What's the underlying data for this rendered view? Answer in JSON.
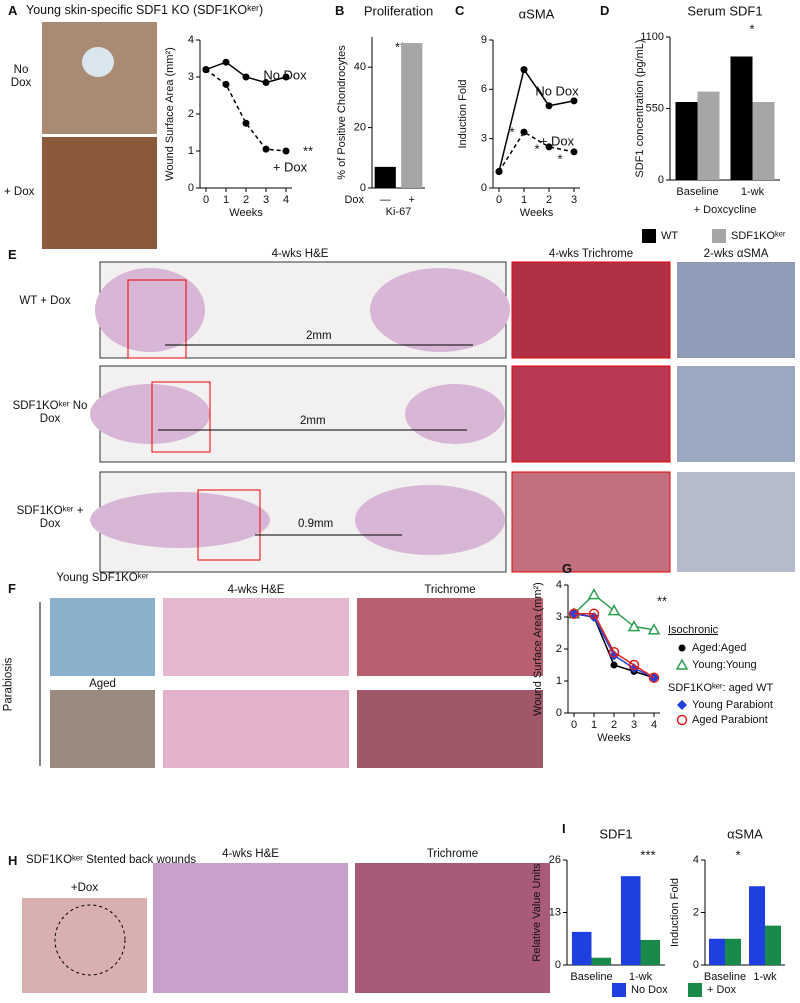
{
  "figure": {
    "panel_labels": [
      "A",
      "B",
      "C",
      "D",
      "E",
      "F",
      "G",
      "H",
      "I"
    ],
    "a_title": "Young skin-specific SDF1 KO (SDF1KOᵏᵉʳ)",
    "a_rows": [
      "No Dox",
      "+ Dox"
    ],
    "e_columns": [
      "4-wks H&E",
      "4-wks Trichrome",
      "2-wks αSMA"
    ],
    "e_rows": [
      "WT + Dox",
      "SDF1KOᵏᵉʳ No Dox",
      "SDF1KOᵏᵉʳ + Dox"
    ],
    "e_scales": [
      "2mm",
      "2mm",
      "0.9mm"
    ],
    "f_rows": [
      "Young SDF1KOᵏᵉʳ",
      "Aged"
    ],
    "f_side": "Parabiosis",
    "f_columns": [
      "4-wks H&E",
      "Trichrome"
    ],
    "h_title": "SDF1KOᵏᵉʳ  Stented back wounds",
    "h_image": "+Dox",
    "h_columns": [
      "4-wks H&E",
      "Trichrome"
    ]
  },
  "chart_data": [
    {
      "type": "line",
      "ylabel": "Wound Surface Area (mm²)",
      "xlabel": "Weeks",
      "x": [
        0,
        1,
        2,
        3,
        4
      ],
      "xlim": [
        0,
        4
      ],
      "xticks": [
        0,
        1,
        2,
        3,
        4
      ],
      "ylim": [
        0,
        4
      ],
      "yticks": [
        0,
        1,
        2,
        3,
        4
      ],
      "series": [
        {
          "name": "No Dox",
          "color": "#000000",
          "marker": "circle",
          "dash": false,
          "values": [
            3.2,
            3.4,
            3.0,
            2.85,
            3.0
          ]
        },
        {
          "name": "+ Dox",
          "color": "#000000",
          "marker": "circle",
          "dash": true,
          "values": [
            3.2,
            2.8,
            1.75,
            1.05,
            1.0
          ]
        }
      ],
      "annotations": [
        "No Dox",
        "+ Dox",
        "**"
      ]
    },
    {
      "type": "bar",
      "title": "Proliferation",
      "ylabel": "% of Positive Chondrocytes",
      "category_label": "Dox",
      "xlabel": "Ki-67",
      "categories": [
        "—",
        "+"
      ],
      "values": [
        7,
        48
      ],
      "colors": [
        "#000000",
        "#a6a6a6"
      ],
      "ylim": [
        0,
        50
      ],
      "yticks": [
        0,
        20,
        40
      ],
      "annotations": [
        "**"
      ]
    },
    {
      "type": "line",
      "title": "αSMA",
      "ylabel": "Induction Fold",
      "xlabel": "Weeks",
      "x": [
        0,
        1,
        2,
        3
      ],
      "xlim": [
        0,
        3
      ],
      "xticks": [
        0,
        1,
        2,
        3
      ],
      "ylim": [
        0,
        9
      ],
      "yticks": [
        0,
        3,
        6,
        9
      ],
      "series": [
        {
          "name": "No Dox",
          "color": "#000000",
          "marker": "circle",
          "dash": false,
          "values": [
            1,
            7.2,
            5.0,
            5.3
          ]
        },
        {
          "name": "+ Dox",
          "color": "#000000",
          "marker": "circle",
          "dash": true,
          "values": [
            1,
            3.4,
            2.5,
            2.2
          ]
        }
      ],
      "annotations": [
        "No Dox",
        "+ Dox",
        "*",
        "*",
        "*"
      ]
    },
    {
      "type": "bar",
      "title": "Serum  SDF1",
      "ylabel": "SDF1 concentration (pg/mL)",
      "xlabel": "+ Doxcycline",
      "categories": [
        "Baseline",
        "1-wk"
      ],
      "ylim": [
        0,
        1100
      ],
      "yticks": [
        0,
        550,
        1100
      ],
      "series": [
        {
          "name": "WT",
          "color": "#000000",
          "values": [
            600,
            950
          ]
        },
        {
          "name": "SDF1KOᵏᵉʳ",
          "color": "#a6a6a6",
          "values": [
            680,
            600
          ]
        }
      ],
      "annotations": [
        "*"
      ]
    },
    {
      "type": "line",
      "ylabel": "Wound Surface Area (mm²)",
      "xlabel": "Weeks",
      "x": [
        0,
        1,
        2,
        3,
        4
      ],
      "xlim": [
        0,
        4
      ],
      "xticks": [
        0,
        1,
        2,
        3,
        4
      ],
      "ylim": [
        0,
        4
      ],
      "yticks": [
        0,
        1,
        2,
        3,
        4
      ],
      "legend_headers": [
        "Isochronic",
        "SDF1KOᵏᵉʳ: aged WT"
      ],
      "series": [
        {
          "name": "Aged:Aged",
          "color": "#000000",
          "marker": "circle",
          "dash": false,
          "values": [
            3.1,
            3.0,
            1.5,
            1.3,
            1.1
          ]
        },
        {
          "name": "Young:Young",
          "color": "#2e9e4f",
          "marker": "triangle",
          "dash": false,
          "values": [
            3.1,
            3.7,
            3.2,
            2.7,
            2.6
          ]
        },
        {
          "name": "Young Parabiont",
          "color": "#1f3fe0",
          "marker": "diamond",
          "dash": false,
          "values": [
            3.1,
            3.0,
            1.8,
            1.4,
            1.1
          ]
        },
        {
          "name": "Aged Parabiont",
          "color": "#e0201b",
          "marker": "open-circle",
          "dash": false,
          "values": [
            3.1,
            3.1,
            1.9,
            1.5,
            1.1
          ]
        }
      ],
      "annotations": [
        "**"
      ]
    },
    {
      "type": "bar",
      "title": "SDF1",
      "ylabel": "Relative Value Units",
      "categories": [
        "Baseline",
        "1-wk"
      ],
      "ylim": [
        0,
        26
      ],
      "yticks": [
        0,
        13,
        26
      ],
      "series": [
        {
          "name": "No Dox",
          "color": "#1f3fe0",
          "values": [
            8.2,
            22
          ]
        },
        {
          "name": "+ Dox",
          "color": "#1a8a4a",
          "values": [
            1.8,
            6.2
          ]
        }
      ],
      "annotations": [
        "***"
      ]
    },
    {
      "type": "bar",
      "title": "αSMA",
      "ylabel": "Induction Fold",
      "categories": [
        "Baseline",
        "1-wk"
      ],
      "ylim": [
        0,
        4
      ],
      "yticks": [
        0,
        2,
        4
      ],
      "series": [
        {
          "name": "No Dox",
          "color": "#1f3fe0",
          "values": [
            1,
            3
          ]
        },
        {
          "name": "+ Dox",
          "color": "#1a8a4a",
          "values": [
            1,
            1.5
          ]
        }
      ],
      "annotations": [
        "*"
      ]
    }
  ]
}
